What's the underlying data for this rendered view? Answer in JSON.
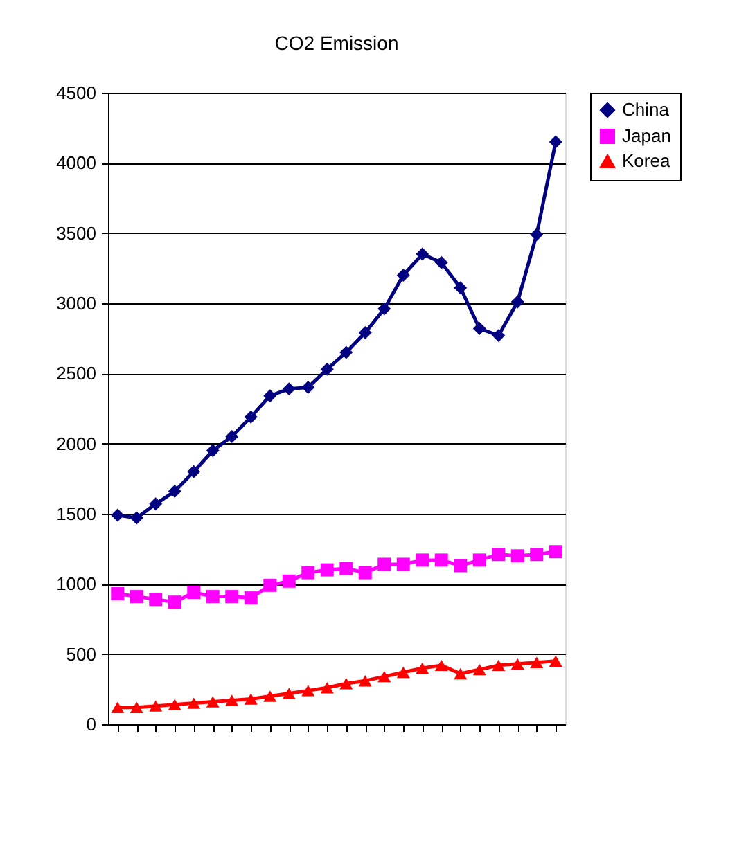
{
  "chart_data": {
    "type": "line",
    "title": "CO2 Emission",
    "categories": [
      null,
      null,
      null,
      null,
      null,
      null,
      null,
      null,
      null,
      null,
      null,
      null,
      null,
      null,
      null,
      null,
      null,
      null,
      null,
      null,
      null,
      null,
      null,
      null
    ],
    "series": [
      {
        "name": "China",
        "color": "#000080",
        "marker": "diamond",
        "values": [
          1490,
          1470,
          1570,
          1660,
          1800,
          1950,
          2050,
          2190,
          2340,
          2390,
          2400,
          2530,
          2650,
          2790,
          2960,
          3200,
          3350,
          3290,
          3110,
          2820,
          2770,
          3010,
          3490,
          4150
        ]
      },
      {
        "name": "Japan",
        "color": "#ff00ff",
        "marker": "square",
        "values": [
          930,
          910,
          890,
          870,
          940,
          910,
          910,
          900,
          990,
          1020,
          1080,
          1100,
          1110,
          1080,
          1140,
          1140,
          1170,
          1170,
          1130,
          1170,
          1210,
          1200,
          1210,
          1230
        ]
      },
      {
        "name": "Korea",
        "color": "#ff0000",
        "marker": "triangle",
        "values": [
          120,
          120,
          130,
          140,
          150,
          160,
          170,
          180,
          200,
          220,
          240,
          260,
          290,
          310,
          340,
          370,
          400,
          420,
          360,
          390,
          420,
          430,
          440,
          450
        ]
      }
    ],
    "ylim": [
      0,
      4500
    ],
    "yticks": [
      0,
      500,
      1000,
      1500,
      2000,
      2500,
      3000,
      3500,
      4000,
      4500
    ],
    "grid": "y",
    "legend": "right",
    "tick_labels": "y"
  }
}
